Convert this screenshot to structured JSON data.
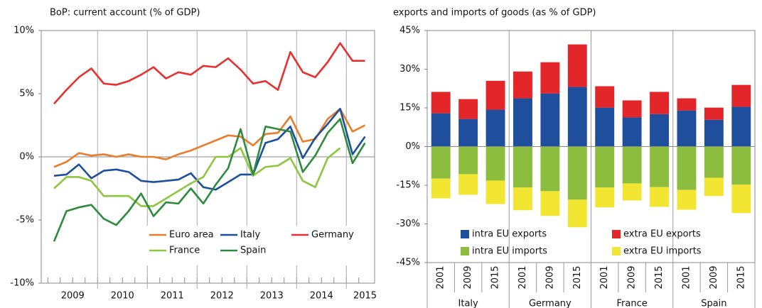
{
  "chart_data": [
    {
      "type": "line",
      "title": "BoP: current account (% of GDP)",
      "categories": [
        null,
        "2009",
        null,
        null,
        null,
        "2010",
        null,
        null,
        null,
        "2011",
        null,
        null,
        null,
        "2012",
        null,
        null,
        null,
        "2013",
        null,
        null,
        null,
        "2014",
        null,
        null,
        null,
        "2015"
      ],
      "ylim": [
        -10,
        10
      ],
      "yticks": [
        {
          "value": -10,
          "label": "-10%"
        },
        {
          "value": -5,
          "label": "-5%"
        },
        {
          "value": 0,
          "label": "0%"
        },
        {
          "value": 5,
          "label": "5%"
        },
        {
          "value": 10,
          "label": "10%"
        }
      ],
      "legend": "lower right",
      "series": [
        {
          "name": "Euro area",
          "color": "#e87d2b",
          "values": [
            -0.8,
            -0.4,
            0.3,
            0.1,
            0.2,
            0.0,
            0.2,
            0.0,
            0.0,
            -0.2,
            0.2,
            0.5,
            0.9,
            1.3,
            1.7,
            1.6,
            0.9,
            1.8,
            1.9,
            3.2,
            1.2,
            1.4,
            3.0,
            3.8,
            2.0,
            2.5
          ]
        },
        {
          "name": "Italy",
          "color": "#1c4f9c",
          "values": [
            -1.5,
            -1.4,
            -0.6,
            -1.7,
            -1.1,
            -1.0,
            -1.2,
            -1.9,
            -2.0,
            -1.9,
            -1.8,
            -1.3,
            -2.4,
            -2.6,
            -2.0,
            -1.4,
            -1.4,
            1.1,
            1.4,
            2.4,
            -0.1,
            1.5,
            2.6,
            3.8,
            0.2,
            1.6
          ]
        },
        {
          "name": "Germany",
          "color": "#e8302f",
          "values": [
            4.2,
            5.3,
            6.3,
            7.0,
            5.8,
            5.7,
            6.0,
            6.5,
            7.1,
            6.2,
            6.7,
            6.5,
            7.2,
            7.1,
            7.8,
            6.9,
            5.8,
            6.0,
            5.3,
            8.3,
            6.7,
            6.3,
            7.5,
            9.0,
            7.6,
            7.6
          ]
        },
        {
          "name": "France",
          "color": "#8dc63f",
          "values": [
            -2.5,
            -1.6,
            -1.6,
            -1.9,
            -3.1,
            -3.1,
            -3.1,
            -3.9,
            -3.9,
            -3.3,
            -2.7,
            -2.1,
            -1.6,
            0.0,
            0.0,
            0.7,
            -1.5,
            -0.8,
            -0.7,
            -0.1,
            -1.9,
            -2.4,
            -0.1,
            0.7,
            null,
            null
          ]
        },
        {
          "name": "Spain",
          "color": "#2e8b3e",
          "values": [
            -6.7,
            -4.3,
            -4.0,
            -3.8,
            -4.9,
            -5.4,
            -4.3,
            -2.9,
            -4.7,
            -3.6,
            -3.7,
            -2.5,
            -3.7,
            -2.2,
            -0.9,
            2.2,
            -1.4,
            2.4,
            2.2,
            2.0,
            -1.2,
            0.1,
            1.9,
            3.0,
            -0.5,
            1.1
          ]
        }
      ]
    },
    {
      "type": "stacked-bar",
      "title": "exports and imports of goods (as % of GDP)",
      "categories": [
        "2001",
        "2009",
        "2015",
        "2001",
        "2009",
        "2015",
        "2001",
        "2009",
        "2015",
        "2001",
        "2009",
        "2015"
      ],
      "groups": [
        "Italy",
        "Germany",
        "France",
        "Spain"
      ],
      "ylim": [
        -45,
        45
      ],
      "yticks": [
        {
          "value": -45,
          "label": "-45%"
        },
        {
          "value": -30,
          "label": "-30%"
        },
        {
          "value": -15,
          "label": "-15%"
        },
        {
          "value": 0,
          "label": "0%"
        },
        {
          "value": 15,
          "label": "15%"
        },
        {
          "value": 30,
          "label": "30%"
        },
        {
          "value": 45,
          "label": "45%"
        }
      ],
      "legend": "lower center",
      "series": [
        {
          "name": "intra EU exports",
          "color": "#1f4e9c",
          "values": [
            12.9,
            10.7,
            14.3,
            18.7,
            20.6,
            23.1,
            15.1,
            11.3,
            12.6,
            14.0,
            10.4,
            15.4
          ]
        },
        {
          "name": "extra EU exports",
          "color": "#e3262a",
          "values": [
            8.3,
            7.7,
            11.2,
            10.4,
            12.1,
            16.5,
            8.3,
            6.6,
            8.6,
            4.7,
            4.7,
            8.5
          ]
        },
        {
          "name": "intra EU imports",
          "color": "#8cbd3f",
          "values": [
            -12.4,
            -10.7,
            -13.2,
            -15.9,
            -17.3,
            -20.6,
            -15.9,
            -14.3,
            -15.7,
            -16.8,
            -12.1,
            -14.8
          ]
        },
        {
          "name": "extra EU imports",
          "color": "#f2e632",
          "values": [
            -7.7,
            -8.0,
            -9.1,
            -8.8,
            -9.6,
            -10.7,
            -7.7,
            -6.6,
            -7.7,
            -7.7,
            -7.1,
            -11.0
          ]
        }
      ]
    }
  ]
}
